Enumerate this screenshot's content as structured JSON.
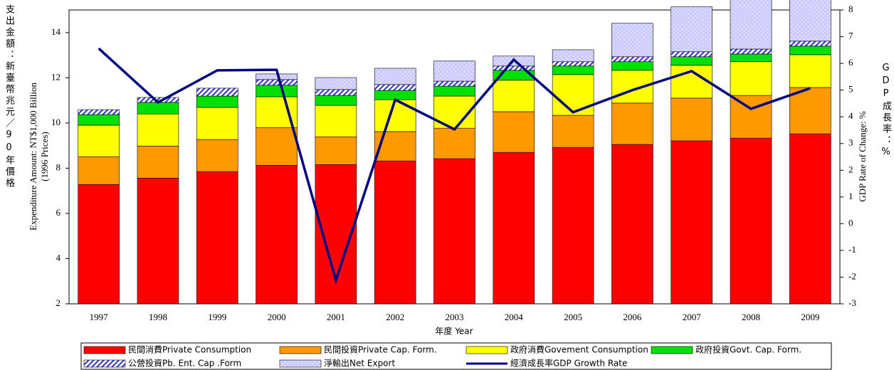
{
  "chart_data": {
    "type": "bar",
    "y_title_zh": "支出金額：新臺幣兆元／90年價格",
    "y_title": "Expenditure Amount: NT$1,000 Billion",
    "y_subtitle": "(1996 Prices)",
    "y2_title": "GDP Rate of Change: %",
    "y2_title_zh": "GDP成長率：%",
    "x_title": "年度 Year",
    "categories": [
      "1997",
      "1998",
      "1999",
      "2000",
      "2001",
      "2002",
      "2003",
      "2004",
      "2005",
      "2006",
      "2007",
      "2008",
      "2009"
    ],
    "ylim": [
      2,
      15
    ],
    "yticks": [
      2,
      4,
      6,
      8,
      10,
      12,
      14
    ],
    "y2lim": [
      -3,
      8
    ],
    "y2ticks": [
      -3,
      -2,
      -1,
      0,
      1,
      2,
      3,
      4,
      5,
      6,
      7,
      8
    ],
    "series": [
      {
        "name": "民間消費Private Consumption",
        "color": "#ff0000",
        "values": [
          5.28,
          5.56,
          5.85,
          6.13,
          6.16,
          6.32,
          6.42,
          6.7,
          6.92,
          7.05,
          7.21,
          7.33,
          7.52
        ]
      },
      {
        "name": "民間投資Private Cap. Form.",
        "color": "#ff9900",
        "values": [
          1.23,
          1.42,
          1.42,
          1.67,
          1.23,
          1.3,
          1.35,
          1.8,
          1.42,
          1.83,
          1.89,
          1.89,
          2.05
        ]
      },
      {
        "name": "政府消費Govement Consumption",
        "color": "#ffff00",
        "values": [
          1.39,
          1.42,
          1.42,
          1.36,
          1.39,
          1.41,
          1.42,
          1.39,
          1.8,
          1.45,
          1.45,
          1.49,
          1.45
        ]
      },
      {
        "name": "政府投資Govt. Cap. Form.",
        "color": "#00e000",
        "values": [
          0.47,
          0.51,
          0.5,
          0.51,
          0.44,
          0.41,
          0.44,
          0.44,
          0.38,
          0.38,
          0.38,
          0.34,
          0.38
        ]
      },
      {
        "name": "公營投資Pb. Ent. Cap .Form",
        "color": "#3333cc",
        "pattern": "hatch",
        "values": [
          0.22,
          0.22,
          0.35,
          0.25,
          0.26,
          0.26,
          0.22,
          0.19,
          0.19,
          0.22,
          0.22,
          0.22,
          0.22
        ]
      },
      {
        "name": "淨輸出Net Export",
        "color": "#ccccff",
        "pattern": "dots",
        "values": [
          0,
          0,
          0,
          0.25,
          0.53,
          0.72,
          0.89,
          0.44,
          0.53,
          1.48,
          1.99,
          2.37,
          2.71
        ]
      },
      {
        "name": "經濟成長率GDP Growth Rate",
        "color": "#000080",
        "type": "line",
        "axis": "y2",
        "values": [
          6.56,
          4.54,
          5.74,
          5.76,
          -2.12,
          4.64,
          3.53,
          6.14,
          4.17,
          5.0,
          5.71,
          4.3,
          5.07
        ]
      }
    ]
  }
}
